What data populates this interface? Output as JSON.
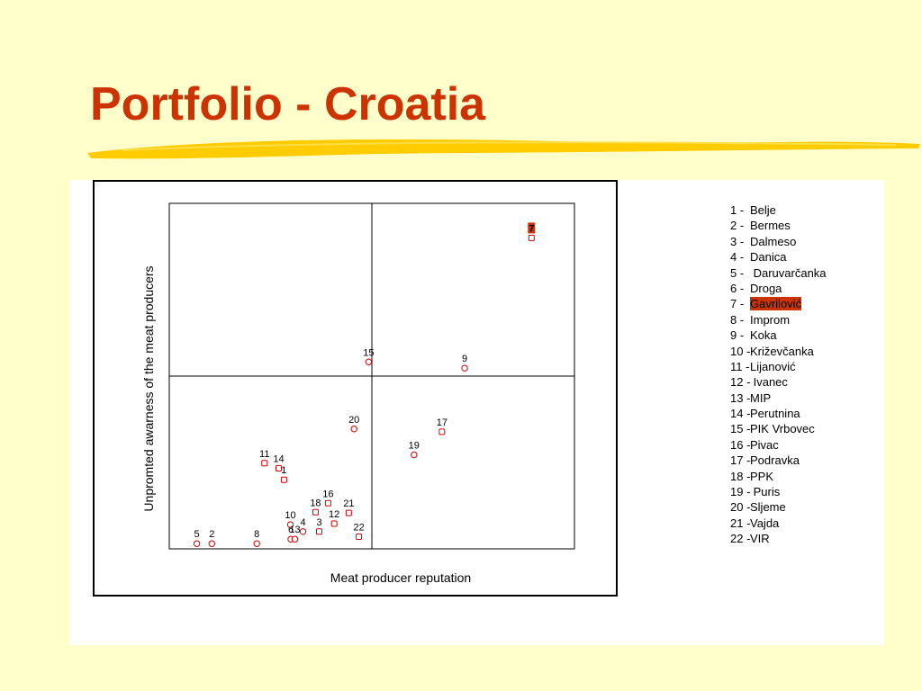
{
  "slide": {
    "title": "Portfolio - Croatia",
    "title_color": "#cc3300",
    "background": "#ffffcc",
    "accent": "#ffcc00"
  },
  "legend": [
    {
      "num": "1 -",
      "name": "Belje"
    },
    {
      "num": "2 -",
      "name": "Bermes"
    },
    {
      "num": "3 -",
      "name": "Dalmeso"
    },
    {
      "num": "4 -",
      "name": "Danica"
    },
    {
      "num": "5 -",
      "name": " Daruvarčanka"
    },
    {
      "num": "6 -",
      "name": "Droga"
    },
    {
      "num": "7 -",
      "name": "Gavrilović",
      "highlight": true
    },
    {
      "num": "8 -",
      "name": "Improm"
    },
    {
      "num": "9 -",
      "name": "Koka"
    },
    {
      "num": "10 -",
      "name": "Križevčanka"
    },
    {
      "num": "11 -",
      "name": "Lijanović"
    },
    {
      "num": "12 -",
      "name": " Ivanec"
    },
    {
      "num": "13 -",
      "name": "MIP"
    },
    {
      "num": "14 -",
      "name": "Perutnina"
    },
    {
      "num": "15 -",
      "name": "PIK Vrbovec"
    },
    {
      "num": "16 -",
      "name": "Pivac"
    },
    {
      "num": "17 -",
      "name": "Podravka"
    },
    {
      "num": "18 -",
      "name": "PPK"
    },
    {
      "num": "19 -",
      "name": " Puris"
    },
    {
      "num": "20 -",
      "name": "Sljeme"
    },
    {
      "num": "21 -",
      "name": "Vajda"
    },
    {
      "num": "22 -",
      "name": "VIR"
    }
  ],
  "chart_data": {
    "type": "scatter",
    "title": "",
    "xlabel": "Meat producer reputation",
    "ylabel": "Unpromted awarness of the meat producers",
    "xlim": [
      0,
      100
    ],
    "ylim": [
      0,
      100
    ],
    "quadrant_split": {
      "x": 50,
      "y": 50
    },
    "marker_color": "#cc0000",
    "highlight_color": "#cc3300",
    "points": [
      {
        "label": "1",
        "x": 28.3,
        "y": 20.0,
        "marker": "square"
      },
      {
        "label": "2",
        "x": 10.5,
        "y": 1.5,
        "marker": "circle"
      },
      {
        "label": "3",
        "x": 37.0,
        "y": 5.0,
        "marker": "square"
      },
      {
        "label": "4",
        "x": 33.0,
        "y": 5.0,
        "marker": "circle"
      },
      {
        "label": "5",
        "x": 6.8,
        "y": 1.5,
        "marker": "circle"
      },
      {
        "label": "6",
        "x": 30.0,
        "y": 2.8,
        "marker": "circle"
      },
      {
        "label": "7",
        "x": 89.4,
        "y": 90.0,
        "marker": "square",
        "highlight": true
      },
      {
        "label": "8",
        "x": 21.6,
        "y": 1.5,
        "marker": "circle"
      },
      {
        "label": "9",
        "x": 72.9,
        "y": 52.3,
        "marker": "circle"
      },
      {
        "label": "10",
        "x": 29.9,
        "y": 7.0,
        "marker": "circle"
      },
      {
        "label": "11",
        "x": 23.5,
        "y": 24.8,
        "marker": "square"
      },
      {
        "label": "12",
        "x": 40.7,
        "y": 7.3,
        "marker": "square"
      },
      {
        "label": "13",
        "x": 31.0,
        "y": 2.8,
        "marker": "circle"
      },
      {
        "label": "14",
        "x": 27.0,
        "y": 23.3,
        "marker": "square"
      },
      {
        "label": "15",
        "x": 49.2,
        "y": 54.1,
        "marker": "circle"
      },
      {
        "label": "16",
        "x": 39.2,
        "y": 13.2,
        "marker": "square"
      },
      {
        "label": "17",
        "x": 67.3,
        "y": 33.9,
        "marker": "square"
      },
      {
        "label": "18",
        "x": 36.1,
        "y": 10.6,
        "marker": "square"
      },
      {
        "label": "19",
        "x": 60.4,
        "y": 27.2,
        "marker": "circle"
      },
      {
        "label": "20",
        "x": 45.6,
        "y": 34.7,
        "marker": "circle"
      },
      {
        "label": "21",
        "x": 44.3,
        "y": 10.4,
        "marker": "square"
      },
      {
        "label": "22",
        "x": 46.8,
        "y": 3.5,
        "marker": "square"
      }
    ]
  }
}
